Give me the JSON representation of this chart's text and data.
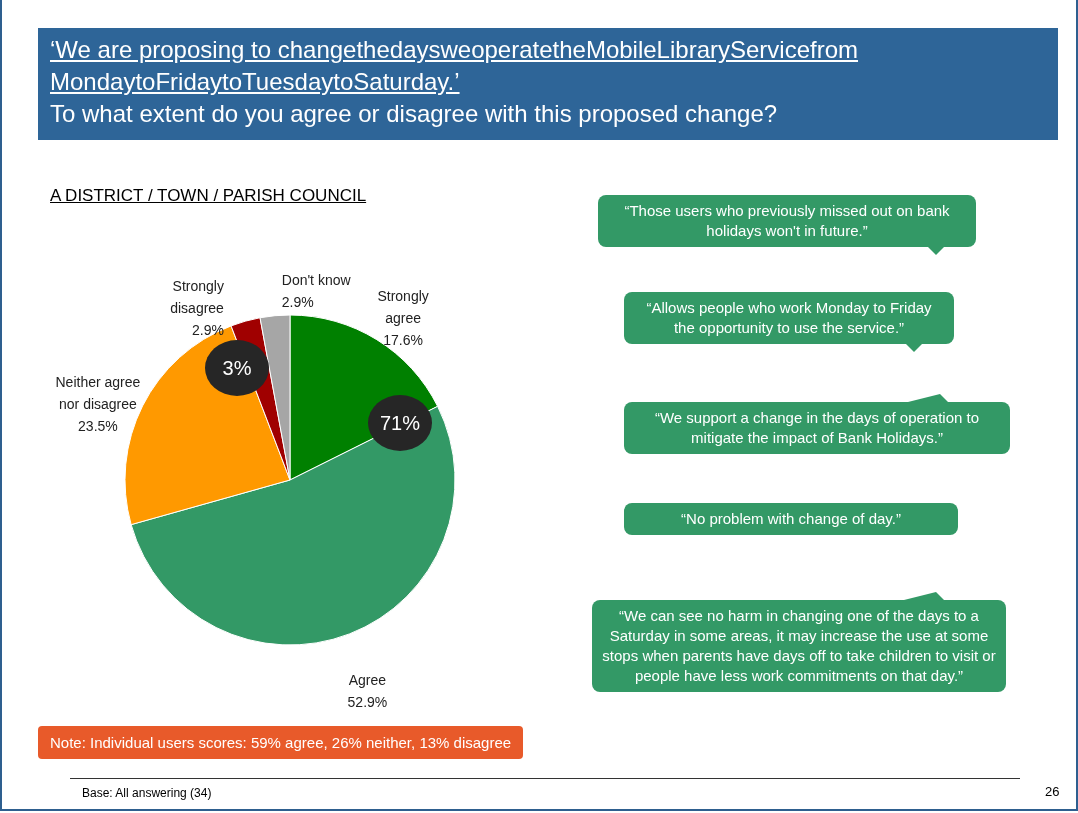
{
  "chart_data": {
    "type": "pie",
    "title": "‘We are proposing to changethedaysweoperatetheMobileLibraryServicefrom MondaytoFridaytoTuesdaytoSaturday.’",
    "subtitle": "To what extent do you agree or disagree with this proposed change?",
    "categories": [
      "Strongly agree",
      "Agree",
      "Neither agree nor disagree",
      "Strongly disagree",
      "Don't know"
    ],
    "values": [
      17.6,
      52.9,
      23.5,
      2.9,
      2.9
    ],
    "value_labels": [
      "17.6%",
      "52.9%",
      "23.5%",
      "2.9%",
      "2.9%"
    ],
    "colors": [
      "#008000",
      "#339966",
      "#ff9900",
      "#a00000",
      "#a6a6a6"
    ],
    "annotations": [
      "A DISTRICT / TOWN / PARISH COUNCIL",
      "“Those users who previously missed out on bank holidays won't in future.”",
      "“Allows people who work Monday to Friday the opportunity to use the service.”",
      "“We support a change in the days of operation to mitigate the impact of Bank Holidays.”",
      "“No problem with change of day.”",
      "“We can see no harm in changing one of the days to a Saturday in some areas, it may increase the use at some stops when parents have days off to take children to visit or people have less work commitments on that day.”",
      "71%",
      "3%",
      "Note: Individual  users scores: 59% agree, 26% neither, 13% disagree",
      "Base: All answering (34)",
      "26"
    ]
  }
}
